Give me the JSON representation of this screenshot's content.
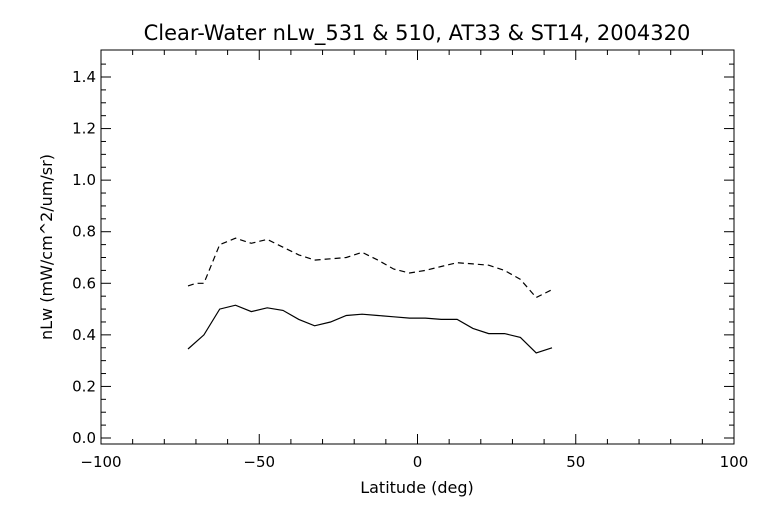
{
  "chart_data": {
    "type": "line",
    "title": "Clear-Water nLw_531 & 510, AT33 & ST14, 2004320",
    "xlabel": "Latitude (deg)",
    "ylabel": "nLw (mW/cm^2/um/sr)",
    "xlim": [
      -100,
      100
    ],
    "ylim": [
      0.0,
      1.5
    ],
    "xticks": [
      -100,
      -50,
      0,
      50,
      100
    ],
    "xtick_labels": [
      "−100",
      "−50",
      "0",
      "50",
      "100"
    ],
    "yticks": [
      0.0,
      0.2,
      0.4,
      0.6,
      0.8,
      1.0,
      1.2,
      1.4
    ],
    "ytick_labels": [
      "0.0",
      "0.2",
      "0.4",
      "0.6",
      "0.8",
      "1.0",
      "1.2",
      "1.4"
    ],
    "grid": false,
    "legend": "none",
    "series": [
      {
        "style": "dashed",
        "color": "#000000",
        "points": [
          [
            -72.5,
            0.59
          ],
          [
            -70,
            0.6
          ],
          [
            -67.5,
            0.6
          ],
          [
            -62.5,
            0.75
          ],
          [
            -57.5,
            0.775
          ],
          [
            -52.5,
            0.755
          ],
          [
            -47.5,
            0.77
          ],
          [
            -42.5,
            0.74
          ],
          [
            -37.5,
            0.71
          ],
          [
            -32.5,
            0.69
          ],
          [
            -27.5,
            0.695
          ],
          [
            -22.5,
            0.7
          ],
          [
            -17.5,
            0.72
          ],
          [
            -12.5,
            0.69
          ],
          [
            -7.5,
            0.655
          ],
          [
            -2.5,
            0.64
          ],
          [
            2.5,
            0.65
          ],
          [
            7.5,
            0.665
          ],
          [
            12.5,
            0.68
          ],
          [
            17.5,
            0.675
          ],
          [
            22.5,
            0.67
          ],
          [
            27.5,
            0.65
          ],
          [
            32.5,
            0.615
          ],
          [
            37.5,
            0.545
          ],
          [
            42.5,
            0.575
          ]
        ]
      },
      {
        "style": "solid",
        "color": "#000000",
        "points": [
          [
            -72.5,
            0.345
          ],
          [
            -67.5,
            0.4
          ],
          [
            -62.5,
            0.5
          ],
          [
            -57.5,
            0.515
          ],
          [
            -52.5,
            0.49
          ],
          [
            -47.5,
            0.505
          ],
          [
            -42.5,
            0.495
          ],
          [
            -37.5,
            0.46
          ],
          [
            -32.5,
            0.435
          ],
          [
            -27.5,
            0.45
          ],
          [
            -22.5,
            0.475
          ],
          [
            -17.5,
            0.48
          ],
          [
            -12.5,
            0.475
          ],
          [
            -7.5,
            0.47
          ],
          [
            -2.5,
            0.465
          ],
          [
            2.5,
            0.465
          ],
          [
            7.5,
            0.46
          ],
          [
            12.5,
            0.46
          ],
          [
            17.5,
            0.425
          ],
          [
            22.5,
            0.405
          ],
          [
            27.5,
            0.405
          ],
          [
            32.5,
            0.39
          ],
          [
            37.5,
            0.33
          ],
          [
            42.5,
            0.35
          ]
        ]
      }
    ]
  }
}
